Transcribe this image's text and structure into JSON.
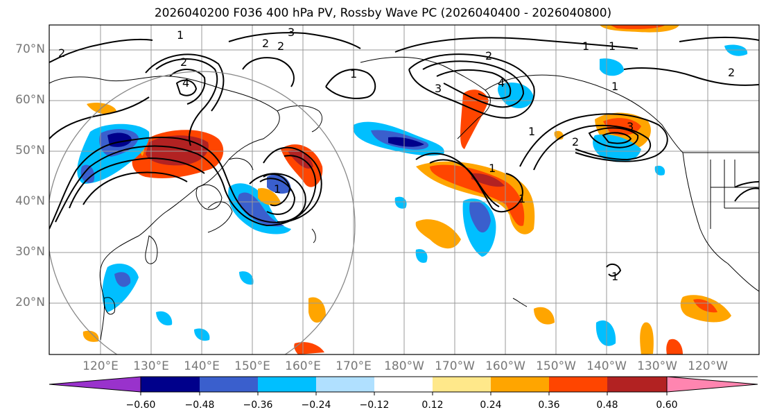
{
  "title": "2026040200 F036 400 hPa PV, Rossby Wave PC (2026040400 - 2026040800)",
  "map": {
    "lat_labels": [
      "70°N",
      "60°N",
      "50°N",
      "40°N",
      "30°N",
      "20°N"
    ],
    "lon_labels": [
      "120°E",
      "130°E",
      "140°E",
      "150°E",
      "160°E",
      "170°E",
      "180°W",
      "170°W",
      "160°W",
      "150°W",
      "140°W",
      "130°W",
      "120°W"
    ],
    "contour_labels": [
      "1",
      "2",
      "3",
      "4"
    ],
    "colors": {
      "land_outline": "#000000",
      "grid": "#999999",
      "contour": "#000000",
      "circle": "#888888"
    }
  },
  "colorbar": {
    "ticks": [
      "−0.60",
      "−0.48",
      "−0.36",
      "−0.24",
      "−0.12",
      "0.12",
      "0.24",
      "0.36",
      "0.48",
      "0.60"
    ],
    "colors": [
      "#9932CC",
      "#00008B",
      "#3A5FCD",
      "#00BFFF",
      "#B0E0FF",
      "#FFFFFF",
      "#FFE88A",
      "#FFA500",
      "#FF4500",
      "#B22222",
      "#FF85B0"
    ]
  }
}
